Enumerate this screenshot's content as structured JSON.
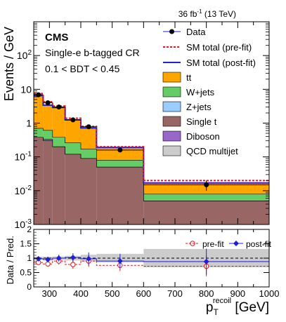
{
  "header": {
    "lumi_label": "36 fb",
    "lumi_sup": "-1",
    "energy_label": " (13 TeV)"
  },
  "annotations": {
    "experiment": "CMS",
    "region": "Single-e b-tagged CR",
    "cut": "0.1 < BDT < 0.45"
  },
  "axes": {
    "upper_ylabel": "Events / GeV",
    "lower_ylabel": "Data / Pred.",
    "xlabel_main": "p",
    "xlabel_sub": "T",
    "xlabel_sup": "recoil",
    "xlabel_unit": " [GeV]"
  },
  "colors": {
    "tt": "#ffa500",
    "wjets": "#66cc66",
    "zjets": "#99ccff",
    "single_t": "#996666",
    "diboson": "#9966cc",
    "qcd": "#cccccc",
    "prefit": "#e8171d",
    "postfit": "#1f1fd6",
    "data": "#000000"
  },
  "legend": {
    "data": "Data",
    "prefit": "SM total (pre-fit)",
    "postfit": "SM total (post-fit)",
    "tt": "tt",
    "wjets": "W+jets",
    "zjets": "Z+jets",
    "single_t": "Single t",
    "diboson": "Diboson",
    "qcd": "QCD multijet"
  },
  "ratio_legend": {
    "prefit": "pre-fit",
    "postfit": "post-fit"
  },
  "chart_data": [
    {
      "type": "area",
      "scale": "log",
      "xlim": [
        250,
        1000
      ],
      "ylim": [
        0.001,
        1000
      ],
      "bin_edges": [
        250,
        280,
        310,
        350,
        400,
        450,
        600,
        1000
      ],
      "x_tick_labels": [
        "300",
        "400",
        "500",
        "600",
        "700",
        "800",
        "900",
        "1000"
      ],
      "y_tick_labels": [
        "10^-3",
        "10^-2",
        "10^-1",
        "1",
        "10",
        "10^2"
      ],
      "stack": [
        {
          "name": "Single t",
          "key": "single_t",
          "values": [
            0.38,
            0.3,
            0.2,
            0.12,
            0.09,
            0.05,
            0.005
          ]
        },
        {
          "name": "Diboson",
          "key": "diboson",
          "values": [
            0,
            0.03,
            0,
            0,
            0,
            0,
            0
          ]
        },
        {
          "name": "W+jets",
          "key": "wjets",
          "values": [
            0.32,
            0.28,
            0.18,
            0.14,
            0.08,
            0.03,
            0.003
          ]
        },
        {
          "name": "tt",
          "key": "tt",
          "values": [
            5.8,
            2.8,
            2.5,
            1.02,
            0.55,
            0.11,
            0.009
          ]
        }
      ],
      "prefit_total": [
        7.5,
        4.3,
        3.2,
        1.4,
        0.8,
        0.2,
        0.02
      ],
      "postfit_total": [
        6.5,
        3.4,
        2.9,
        1.25,
        0.72,
        0.19,
        0.017
      ],
      "data": {
        "x": [
          265,
          295,
          330,
          375,
          425,
          525,
          800
        ],
        "y": [
          6.9,
          4.0,
          3.0,
          1.25,
          0.78,
          0.16,
          0.015
        ],
        "yerr": [
          0.5,
          0.4,
          0.3,
          0.15,
          0.1,
          0.02,
          0.005
        ]
      }
    },
    {
      "type": "scatter",
      "xlim": [
        250,
        1000
      ],
      "ylim": [
        0,
        2
      ],
      "y_tick_labels": [
        "0",
        "0.5",
        "1",
        "1.5",
        "2"
      ],
      "band": {
        "x_edges": [
          250,
          280,
          310,
          350,
          400,
          450,
          600,
          1000
        ],
        "half_width": [
          0.05,
          0.05,
          0.06,
          0.08,
          0.12,
          0.15,
          0.32
        ]
      },
      "prefit": {
        "x": [
          265,
          295,
          330,
          375,
          425,
          525,
          800
        ],
        "y": [
          0.85,
          0.8,
          0.9,
          0.78,
          0.9,
          0.75,
          0.72
        ],
        "yerr": [
          0.08,
          0.1,
          0.12,
          0.15,
          0.2,
          0.2,
          0.35
        ]
      },
      "postfit": {
        "x": [
          265,
          295,
          330,
          375,
          425,
          525,
          800
        ],
        "y": [
          0.98,
          0.95,
          1.0,
          1.02,
          0.98,
          0.9,
          0.88
        ],
        "yerr": [
          0.08,
          0.1,
          0.12,
          0.15,
          0.22,
          0.25,
          0.45
        ]
      }
    }
  ]
}
